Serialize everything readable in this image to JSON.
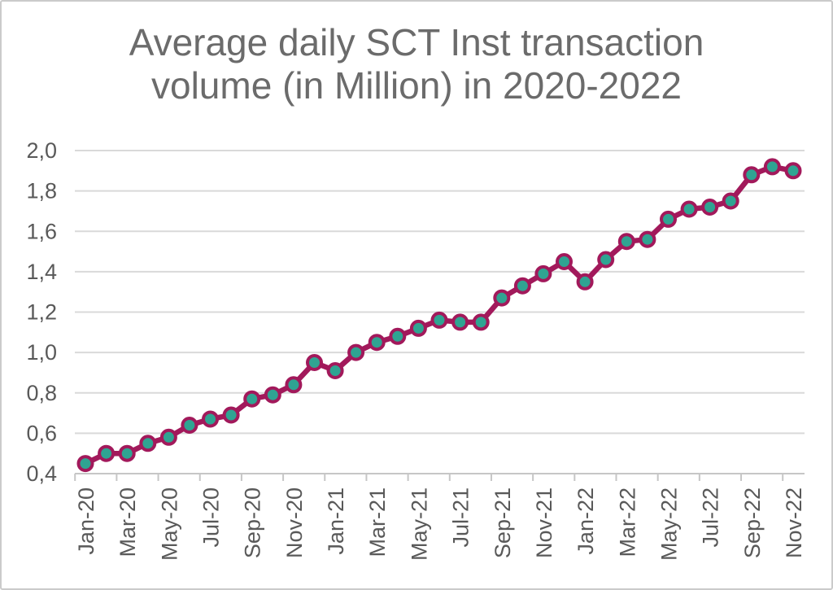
{
  "chart_data": {
    "type": "line",
    "title": "Average daily SCT Inst transaction volume (in Million) in 2020-2022",
    "categories": [
      "Jan-20",
      "Feb-20",
      "Mar-20",
      "Apr-20",
      "May-20",
      "Jun-20",
      "Jul-20",
      "Aug-20",
      "Sep-20",
      "Oct-20",
      "Nov-20",
      "Dec-20",
      "Jan-21",
      "Feb-21",
      "Mar-21",
      "Apr-21",
      "May-21",
      "Jun-21",
      "Jul-21",
      "Aug-21",
      "Sep-21",
      "Oct-21",
      "Nov-21",
      "Dec-21",
      "Jan-22",
      "Feb-22",
      "Mar-22",
      "Apr-22",
      "May-22",
      "Jun-22",
      "Jul-22",
      "Aug-22",
      "Sep-22",
      "Oct-22",
      "Nov-22"
    ],
    "values": [
      0.45,
      0.5,
      0.5,
      0.55,
      0.58,
      0.64,
      0.67,
      0.69,
      0.77,
      0.79,
      0.84,
      0.95,
      0.91,
      1.0,
      1.05,
      1.08,
      1.12,
      1.16,
      1.15,
      1.15,
      1.27,
      1.33,
      1.39,
      1.45,
      1.35,
      1.46,
      1.55,
      1.56,
      1.66,
      1.71,
      1.72,
      1.75,
      1.88,
      1.92,
      1.9
    ],
    "x_tick_interval": 2,
    "x_tick_labels_shown": [
      "Jan-20",
      "Mar-20",
      "May-20",
      "Jul-20",
      "Sep-20",
      "Nov-20",
      "Jan-21",
      "Mar-21",
      "May-21",
      "Jul-21",
      "Sep-21",
      "Nov-21",
      "Jan-22",
      "Mar-22",
      "May-22",
      "Jul-22",
      "Sep-22",
      "Nov-22"
    ],
    "ylim": [
      0.4,
      2.0
    ],
    "y_ticks": [
      {
        "value": 0.4,
        "label": "0,4"
      },
      {
        "value": 0.6,
        "label": "0,6"
      },
      {
        "value": 0.8,
        "label": "0,8"
      },
      {
        "value": 1.0,
        "label": "1,0"
      },
      {
        "value": 1.2,
        "label": "1,2"
      },
      {
        "value": 1.4,
        "label": "1,4"
      },
      {
        "value": 1.6,
        "label": "1,6"
      },
      {
        "value": 1.8,
        "label": "1,8"
      },
      {
        "value": 2.0,
        "label": "2,0"
      }
    ],
    "grid": "horizontal",
    "legend": "none",
    "colors": {
      "line": "#a2195b",
      "marker_fill": "#2fa492",
      "grid": "#d9d9d9",
      "axis": "#c6c6c6",
      "title_text": "#6b6b6b",
      "label_text": "#595959",
      "background": "#ffffff",
      "border": "#cbcbcb"
    }
  }
}
